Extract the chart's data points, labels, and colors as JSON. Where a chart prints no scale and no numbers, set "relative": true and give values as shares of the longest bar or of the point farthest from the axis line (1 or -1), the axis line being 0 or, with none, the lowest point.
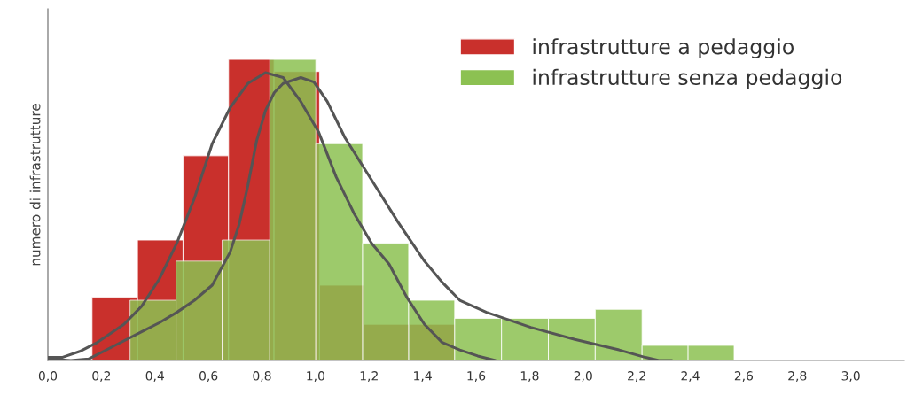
{
  "chart_data": {
    "type": "histogram",
    "relative": true,
    "ylabel": "numero di infrastrutture",
    "xlim": [
      0,
      3.2
    ],
    "xticks": [
      {
        "value": 0,
        "label": "0,0"
      },
      {
        "value": 0.2,
        "label": "0,2"
      },
      {
        "value": 0.4,
        "label": "0,4"
      },
      {
        "value": 0.6,
        "label": "0,6"
      },
      {
        "value": 0.8,
        "label": "0,8"
      },
      {
        "value": 1.0,
        "label": "1,0"
      },
      {
        "value": 1.2,
        "label": "1,2"
      },
      {
        "value": 1.4,
        "label": "1,4"
      },
      {
        "value": 1.6,
        "label": "1,6"
      },
      {
        "value": 1.8,
        "label": "1,8"
      },
      {
        "value": 2.0,
        "label": "2,0"
      },
      {
        "value": 2.2,
        "label": "2,2"
      },
      {
        "value": 2.4,
        "label": "2,4"
      },
      {
        "value": 2.6,
        "label": "2,6"
      },
      {
        "value": 2.8,
        "label": "2,8"
      },
      {
        "value": 3.0,
        "label": "3,0"
      }
    ],
    "tick_labels": "x",
    "grid": false,
    "legend": "top right",
    "series": [
      {
        "name": "infrastrutture a pedaggio",
        "color": "#c9302c",
        "bins": [
          0.165,
          0.335,
          0.505,
          0.675,
          0.845,
          1.015,
          1.18,
          1.35,
          1.52
        ],
        "values": [
          0.21,
          0.4,
          0.68,
          1.0,
          0.96,
          0.25,
          0.12,
          0.12
        ]
      },
      {
        "name": "infrastrutture senza pedaggio",
        "color": "#8cc152",
        "bins": [
          0.307,
          0.479,
          0.651,
          0.829,
          1.001,
          1.176,
          1.348,
          1.52,
          1.695,
          1.87,
          2.045,
          2.22,
          2.392,
          2.564
        ],
        "values": [
          0.2,
          0.33,
          0.4,
          1.0,
          0.72,
          0.39,
          0.2,
          0.14,
          0.14,
          0.14,
          0.17,
          0.05,
          0.05
        ]
      },
      {
        "type": "line",
        "color": "#555555",
        "x": [
          0.0,
          0.053,
          0.119,
          0.185,
          0.284,
          0.35,
          0.416,
          0.482,
          0.548,
          0.614,
          0.681,
          0.747,
          0.813,
          0.879,
          0.945,
          1.011,
          1.077,
          1.143,
          1.209,
          1.275,
          1.341,
          1.407,
          1.473,
          1.539,
          1.606,
          1.672
        ],
        "values": [
          0.01,
          0.01,
          0.03,
          0.06,
          0.12,
          0.18,
          0.27,
          0.39,
          0.54,
          0.72,
          0.84,
          0.92,
          0.956,
          0.94,
          0.86,
          0.76,
          0.61,
          0.49,
          0.39,
          0.32,
          0.21,
          0.12,
          0.06,
          0.035,
          0.015,
          0.0
        ]
      },
      {
        "type": "line",
        "color": "#555555",
        "x": [
          0.0,
          0.086,
          0.152,
          0.251,
          0.35,
          0.416,
          0.482,
          0.548,
          0.614,
          0.681,
          0.714,
          0.747,
          0.78,
          0.813,
          0.846,
          0.879,
          0.945,
          0.994,
          1.044,
          1.11,
          1.209,
          1.308,
          1.407,
          1.473,
          1.539,
          1.639,
          1.804,
          1.969,
          2.134,
          2.233,
          2.283,
          2.332
        ],
        "values": [
          0.005,
          0.0,
          0.005,
          0.05,
          0.095,
          0.125,
          0.16,
          0.2,
          0.25,
          0.36,
          0.45,
          0.58,
          0.73,
          0.83,
          0.89,
          0.92,
          0.94,
          0.925,
          0.86,
          0.74,
          0.6,
          0.46,
          0.33,
          0.26,
          0.2,
          0.16,
          0.11,
          0.07,
          0.035,
          0.01,
          0.0,
          0.0
        ]
      }
    ]
  }
}
